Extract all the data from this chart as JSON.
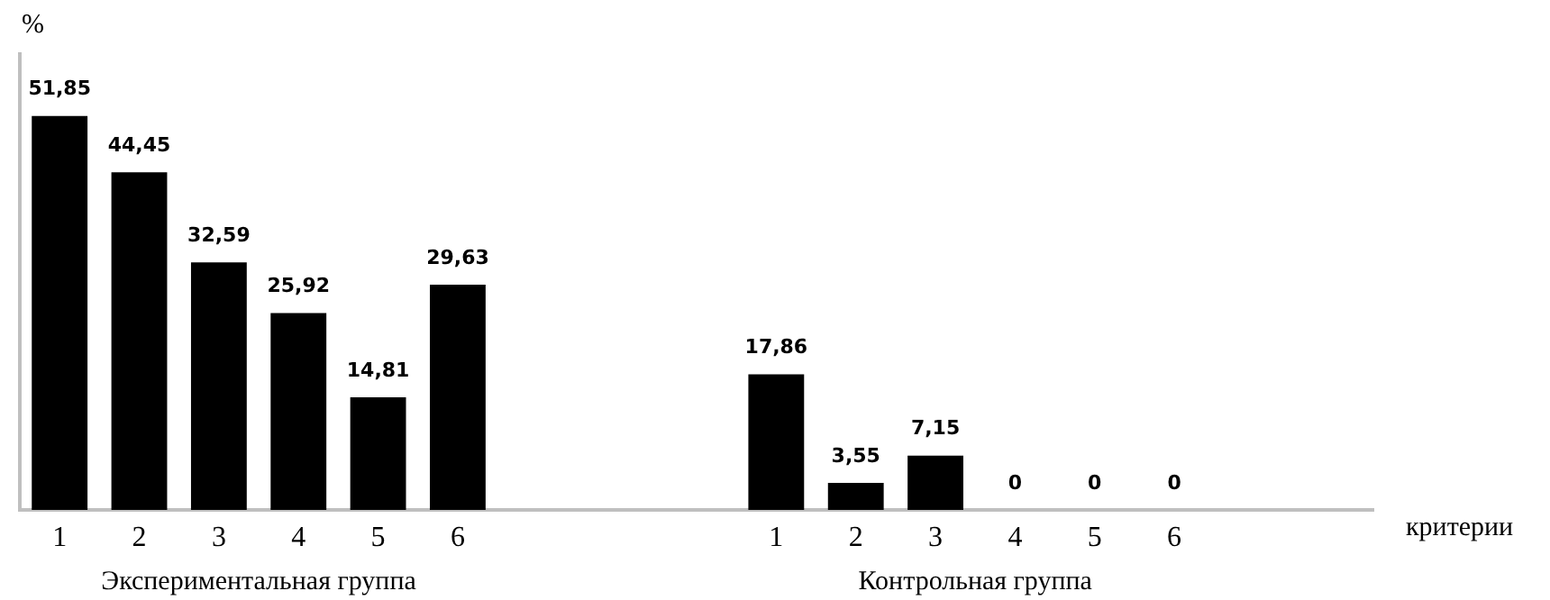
{
  "chart_data": {
    "type": "bar",
    "ylabel": "%",
    "xlabel": "критерии",
    "categories": [
      "1",
      "2",
      "3",
      "4",
      "5",
      "6",
      null,
      null,
      null,
      "1",
      "2",
      "3",
      "4",
      "5",
      "6",
      null,
      null
    ],
    "values": [
      51.85,
      44.45,
      32.59,
      25.92,
      14.81,
      29.63,
      null,
      null,
      null,
      17.86,
      3.55,
      7.15,
      0,
      0,
      0,
      null,
      null
    ],
    "value_labels": [
      "51,85",
      "44,45",
      "32,59",
      "25,92",
      "14,81",
      "29,63",
      null,
      null,
      null,
      "17,86",
      "3,55",
      "7,15",
      "0",
      "0",
      "0",
      null,
      null
    ],
    "color": "#000000",
    "ylim": [
      0,
      60
    ],
    "tick_labels": "x",
    "grid": false,
    "legend": false,
    "annotations": [
      "Экспериментальная группа",
      "Контрольная группа"
    ]
  }
}
